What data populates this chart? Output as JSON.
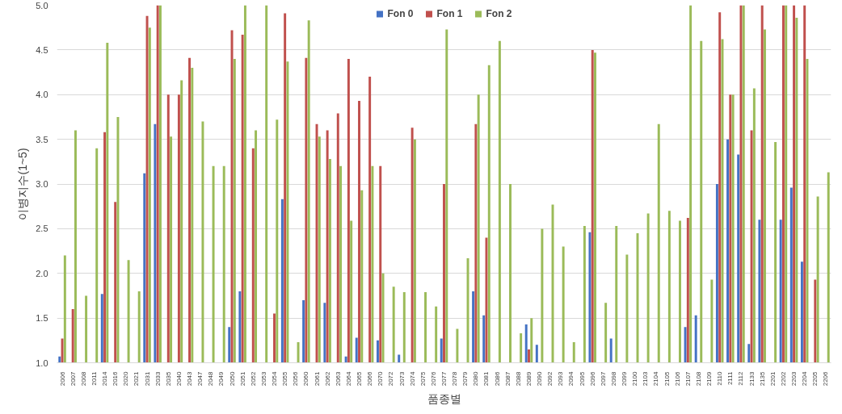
{
  "chart_data": {
    "type": "bar",
    "xlabel": "품종별",
    "ylabel": "이병지수(1~5)",
    "categories": [
      "2006",
      "2007",
      "2008",
      "2011",
      "2014",
      "2016",
      "2020",
      "2021",
      "2031",
      "2033",
      "2035",
      "2040",
      "2043",
      "2047",
      "2048",
      "2049",
      "2050",
      "2051",
      "2052",
      "2053",
      "2054",
      "2055",
      "2056",
      "2060",
      "2061",
      "2062",
      "2063",
      "2064",
      "2065",
      "2066",
      "2070",
      "2072",
      "2073",
      "2074",
      "2075",
      "2076",
      "2077",
      "2078",
      "2079",
      "2080",
      "2081",
      "2086",
      "2087",
      "2088",
      "2089",
      "2090",
      "2092",
      "2093",
      "2094",
      "2095",
      "2096",
      "2097",
      "2098",
      "2099",
      "2100",
      "2103",
      "2104",
      "2105",
      "2106",
      "2107",
      "2108",
      "2109",
      "2110",
      "2111",
      "2112",
      "2133",
      "2135",
      "2201",
      "2202",
      "2203",
      "2204",
      "2205",
      "2206"
    ],
    "series": [
      {
        "name": "Fon 0",
        "color": "#4472c4",
        "values": [
          1.07,
          null,
          null,
          null,
          1.77,
          null,
          null,
          null,
          3.12,
          3.67,
          null,
          null,
          null,
          null,
          null,
          null,
          1.4,
          1.8,
          null,
          null,
          null,
          2.83,
          null,
          1.7,
          null,
          1.67,
          null,
          1.07,
          1.28,
          null,
          1.25,
          null,
          1.09,
          null,
          null,
          null,
          1.27,
          null,
          null,
          1.8,
          1.53,
          null,
          null,
          null,
          1.43,
          1.2,
          null,
          null,
          null,
          null,
          2.46,
          null,
          1.27,
          null,
          null,
          null,
          null,
          null,
          null,
          1.4,
          1.53,
          null,
          3.0,
          3.5,
          3.33,
          1.21,
          2.6,
          null,
          2.6,
          2.96,
          2.13,
          null,
          null
        ]
      },
      {
        "name": "Fon 1",
        "color": "#c0504d",
        "values": [
          1.27,
          1.6,
          null,
          null,
          3.58,
          2.8,
          null,
          null,
          4.88,
          5.0,
          4.0,
          4.0,
          4.41,
          null,
          null,
          null,
          4.72,
          4.67,
          3.4,
          null,
          1.55,
          4.91,
          null,
          4.41,
          3.67,
          3.6,
          3.79,
          4.4,
          3.93,
          4.2,
          3.2,
          null,
          null,
          3.63,
          null,
          null,
          3.0,
          null,
          null,
          3.67,
          2.4,
          null,
          null,
          null,
          1.15,
          null,
          null,
          null,
          null,
          null,
          4.5,
          null,
          null,
          null,
          null,
          null,
          null,
          null,
          null,
          2.62,
          null,
          null,
          4.92,
          4.0,
          5.0,
          3.6,
          5.0,
          null,
          5.0,
          5.0,
          5.0,
          1.93,
          null
        ]
      },
      {
        "name": "Fon 2",
        "color": "#9bbb59",
        "values": [
          2.2,
          3.6,
          1.75,
          3.4,
          4.58,
          3.75,
          2.15,
          1.8,
          4.75,
          5.0,
          3.53,
          4.16,
          4.3,
          3.7,
          3.2,
          3.2,
          4.4,
          5.0,
          3.6,
          5.0,
          3.72,
          4.37,
          1.23,
          4.83,
          3.53,
          3.28,
          3.2,
          2.59,
          2.93,
          3.2,
          2.0,
          1.85,
          1.79,
          3.5,
          1.79,
          1.63,
          4.73,
          1.38,
          2.17,
          4.0,
          4.33,
          4.6,
          3.0,
          1.33,
          1.5,
          2.5,
          2.77,
          2.3,
          1.23,
          2.53,
          4.47,
          1.67,
          2.53,
          2.21,
          2.45,
          2.67,
          3.67,
          2.7,
          2.59,
          5.0,
          4.6,
          1.93,
          4.62,
          4.0,
          5.0,
          4.07,
          4.73,
          3.47,
          5.0,
          4.86,
          4.4,
          2.86,
          3.13
        ]
      }
    ],
    "ylim": [
      1.0,
      5.0
    ],
    "yticks": [
      {
        "value": 1.0,
        "label": "1.0"
      },
      {
        "value": 1.5,
        "label": "1.5"
      },
      {
        "value": 2.0,
        "label": "2.0"
      },
      {
        "value": 2.5,
        "label": "2.5"
      },
      {
        "value": 3.0,
        "label": "3.0"
      },
      {
        "value": 3.5,
        "label": "3.5"
      },
      {
        "value": 4.0,
        "label": "4.0"
      },
      {
        "value": 4.5,
        "label": "4.5"
      },
      {
        "value": 5.0,
        "label": "5.0"
      }
    ],
    "grid": "y",
    "legend": "top"
  }
}
